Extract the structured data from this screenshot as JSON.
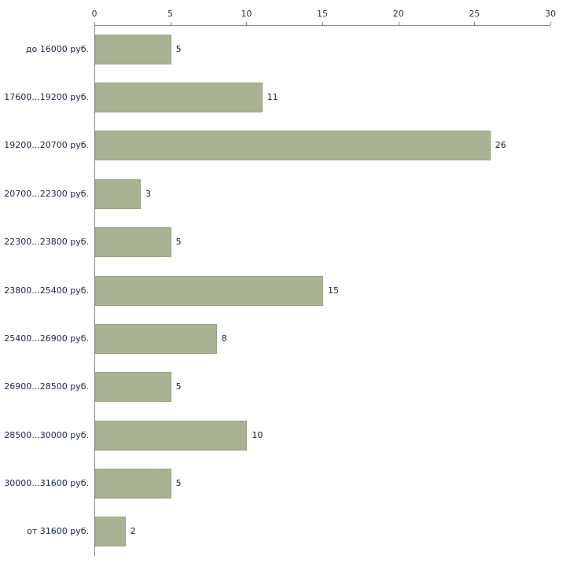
{
  "chart_data": {
    "type": "bar",
    "orientation": "horizontal",
    "title": "",
    "xlabel": "",
    "ylabel": "",
    "categories": [
      "до 16000 руб.",
      "17600...19200 руб.",
      "19200...20700 руб.",
      "20700...22300 руб.",
      "22300...23800 руб.",
      "23800...25400 руб.",
      "25400...26900 руб.",
      "26900...28500 руб.",
      "28500...30000 руб.",
      "30000...31600 руб.",
      "от 31600 руб."
    ],
    "values": [
      5,
      11,
      26,
      3,
      5,
      15,
      8,
      5,
      10,
      5,
      2
    ],
    "x_ticks": [
      0,
      5,
      10,
      15,
      20,
      25,
      30
    ],
    "xlim": [
      0,
      30
    ],
    "grid": false,
    "legend": false,
    "axis_position": "top",
    "colors": {
      "bar_fill": "#a9b293",
      "bar_border": "#99a385",
      "axis": "#888888",
      "tick_label": "#333333",
      "category_label": "#1c2746",
      "value_label": "#222222",
      "background": "#ffffff"
    }
  }
}
